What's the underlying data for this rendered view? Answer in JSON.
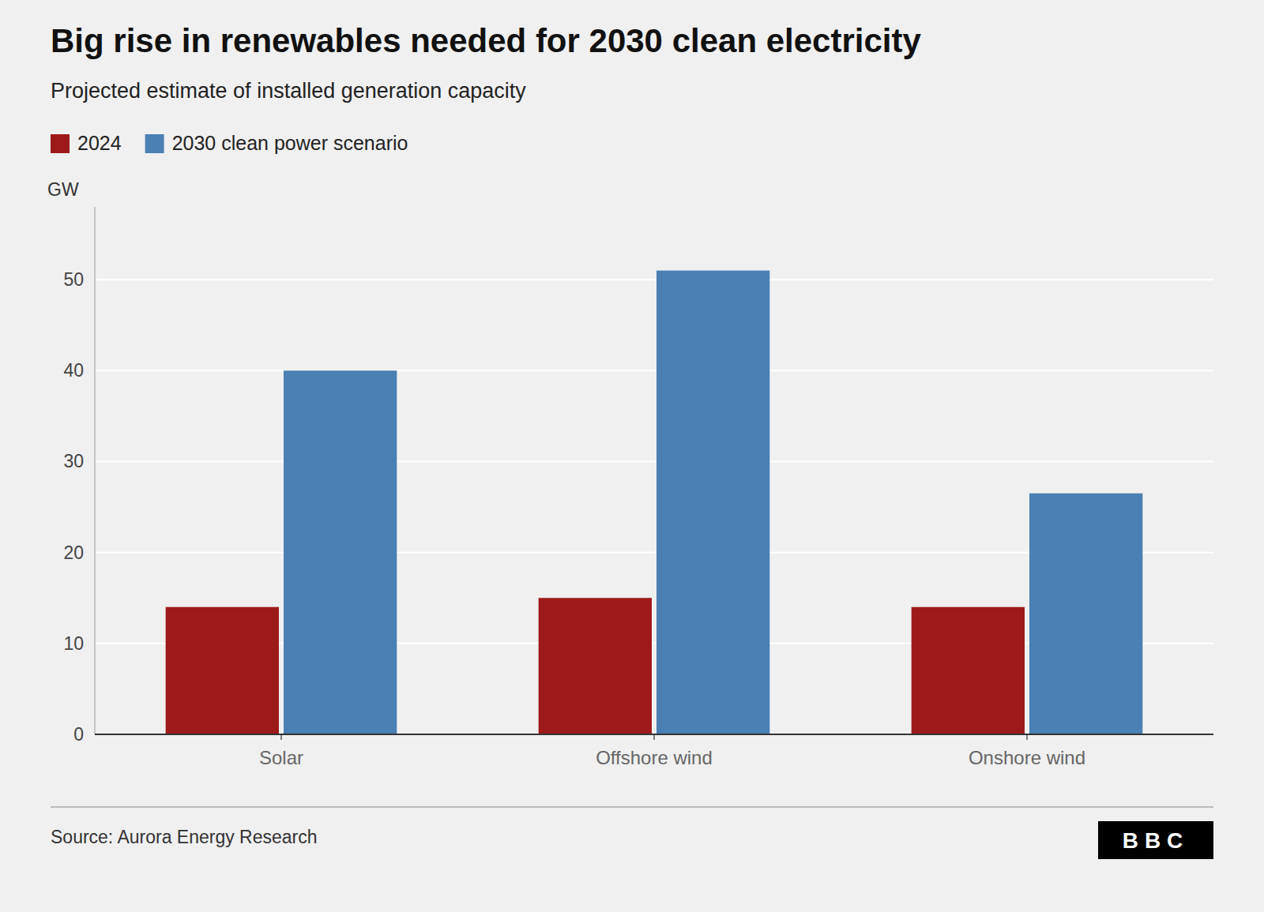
{
  "chart_data": {
    "type": "bar",
    "title": "Big rise in renewables needed for 2030 clean electricity",
    "subtitle": "Projected estimate of installed generation capacity",
    "y_label": "GW",
    "source": "Source: Aurora Energy Research",
    "annotations": [
      "BBC"
    ],
    "categories": [
      "Solar",
      "Offshore wind",
      "Onshore wind"
    ],
    "series": [
      {
        "name": "2024",
        "color": "#9e1a1a",
        "values": [
          14,
          15,
          14
        ]
      },
      {
        "name": "2030 clean power scenario",
        "color": "#4a80b4",
        "values": [
          40,
          51,
          26.5
        ]
      }
    ],
    "ylim": [
      0,
      58
    ],
    "yticks": [
      0,
      10,
      20,
      30,
      40,
      50
    ],
    "grid": true,
    "legend": "top"
  }
}
